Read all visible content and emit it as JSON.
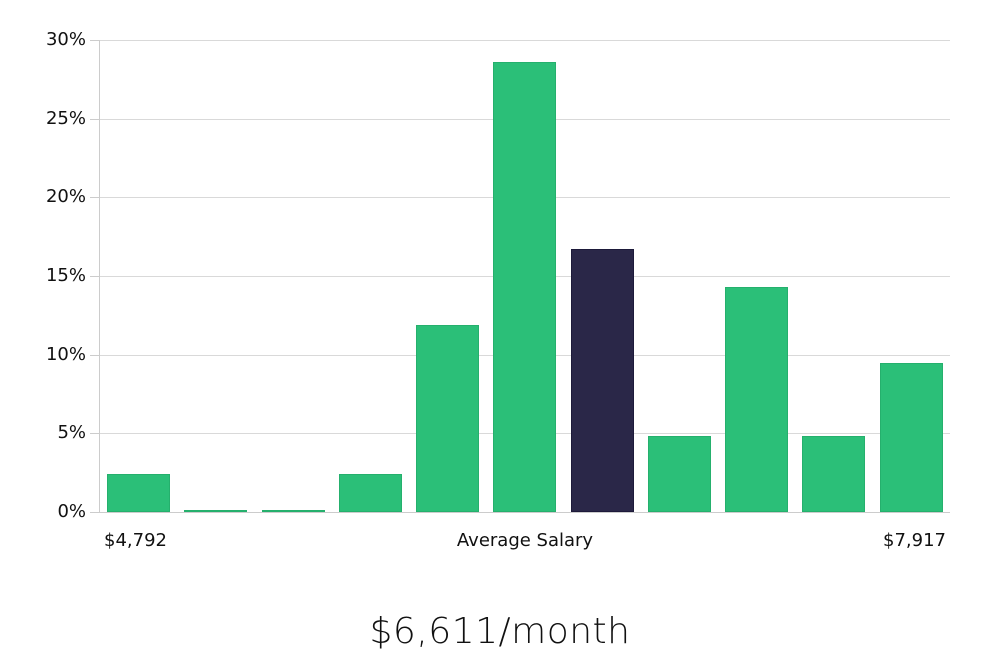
{
  "chart_data": {
    "type": "bar",
    "title": "",
    "xlabel": "Average Salary",
    "ylabel": "",
    "ylim": [
      0,
      30
    ],
    "yticks": [
      "0%",
      "5%",
      "10%",
      "15%",
      "20%",
      "25%",
      "30%"
    ],
    "x_range_labels": {
      "min": "$4,792",
      "max": "$7,917"
    },
    "grid": true,
    "legend": null,
    "categories": [
      "bin1",
      "bin2",
      "bin3",
      "bin4",
      "bin5",
      "bin6",
      "bin7",
      "bin8",
      "bin9",
      "bin10",
      "bin11"
    ],
    "values": [
      2.4,
      0.1,
      0.1,
      2.4,
      11.9,
      28.6,
      16.7,
      4.8,
      14.3,
      4.8,
      9.5
    ],
    "highlight_index": 6,
    "colors": {
      "bar": "#2bbf78",
      "highlight": "#2a2748",
      "grid": "#d9d9d9"
    }
  },
  "labels": {
    "x_min": "$4,792",
    "x_center": "Average Salary",
    "x_max": "$7,917",
    "summary": "$6,611/month"
  }
}
